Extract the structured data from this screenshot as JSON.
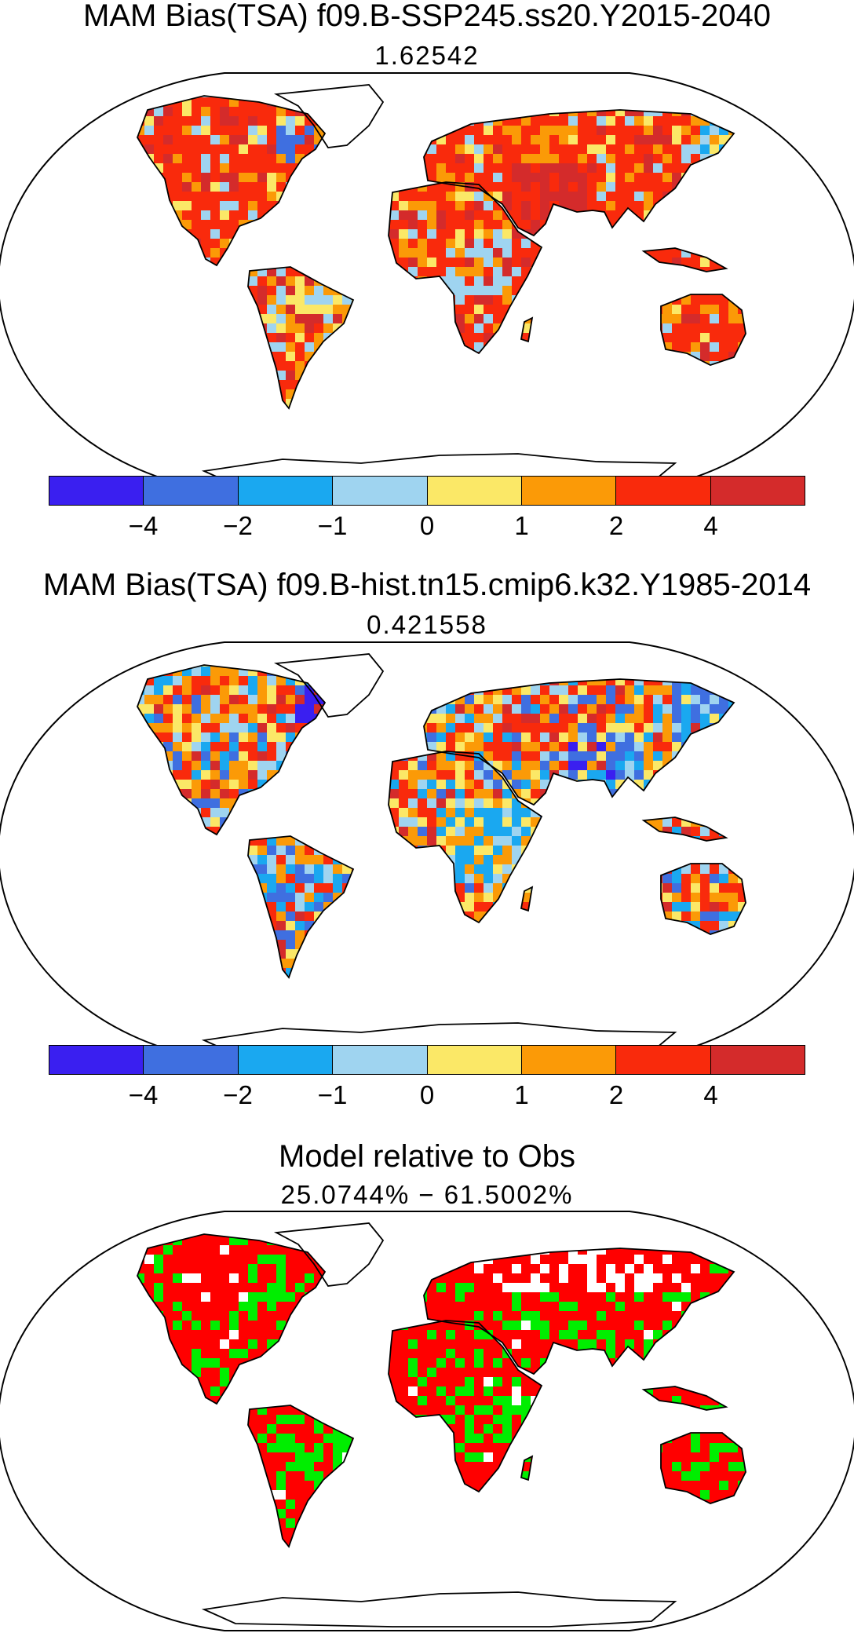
{
  "panels": [
    {
      "title": "MAM Bias(TSA) f09.B-SSP245.ss20.Y2015-2040",
      "subtitle": "1.62542",
      "scheme": "bias_warm"
    },
    {
      "title": "MAM Bias(TSA) f09.B-hist.tn15.cmip6.k32.Y1985-2014",
      "subtitle": "0.421558",
      "scheme": "bias_mixed"
    },
    {
      "title": "Model relative to Obs",
      "subtitle": "25.0744% − 61.5002%",
      "scheme": "relative"
    }
  ],
  "colorbar": {
    "colors": [
      "#3a1ff0",
      "#3f6fe0",
      "#1aa8f0",
      "#9fd4f0",
      "#fbe867",
      "#fb9a07",
      "#f92a0c",
      "#d42b2b"
    ],
    "tick_labels": [
      "−4",
      "−2",
      "−1",
      "0",
      "1",
      "2",
      "4"
    ]
  },
  "relative_colors": {
    "red": "#ff0000",
    "green": "#00ee00",
    "white": "#ffffff"
  }
}
